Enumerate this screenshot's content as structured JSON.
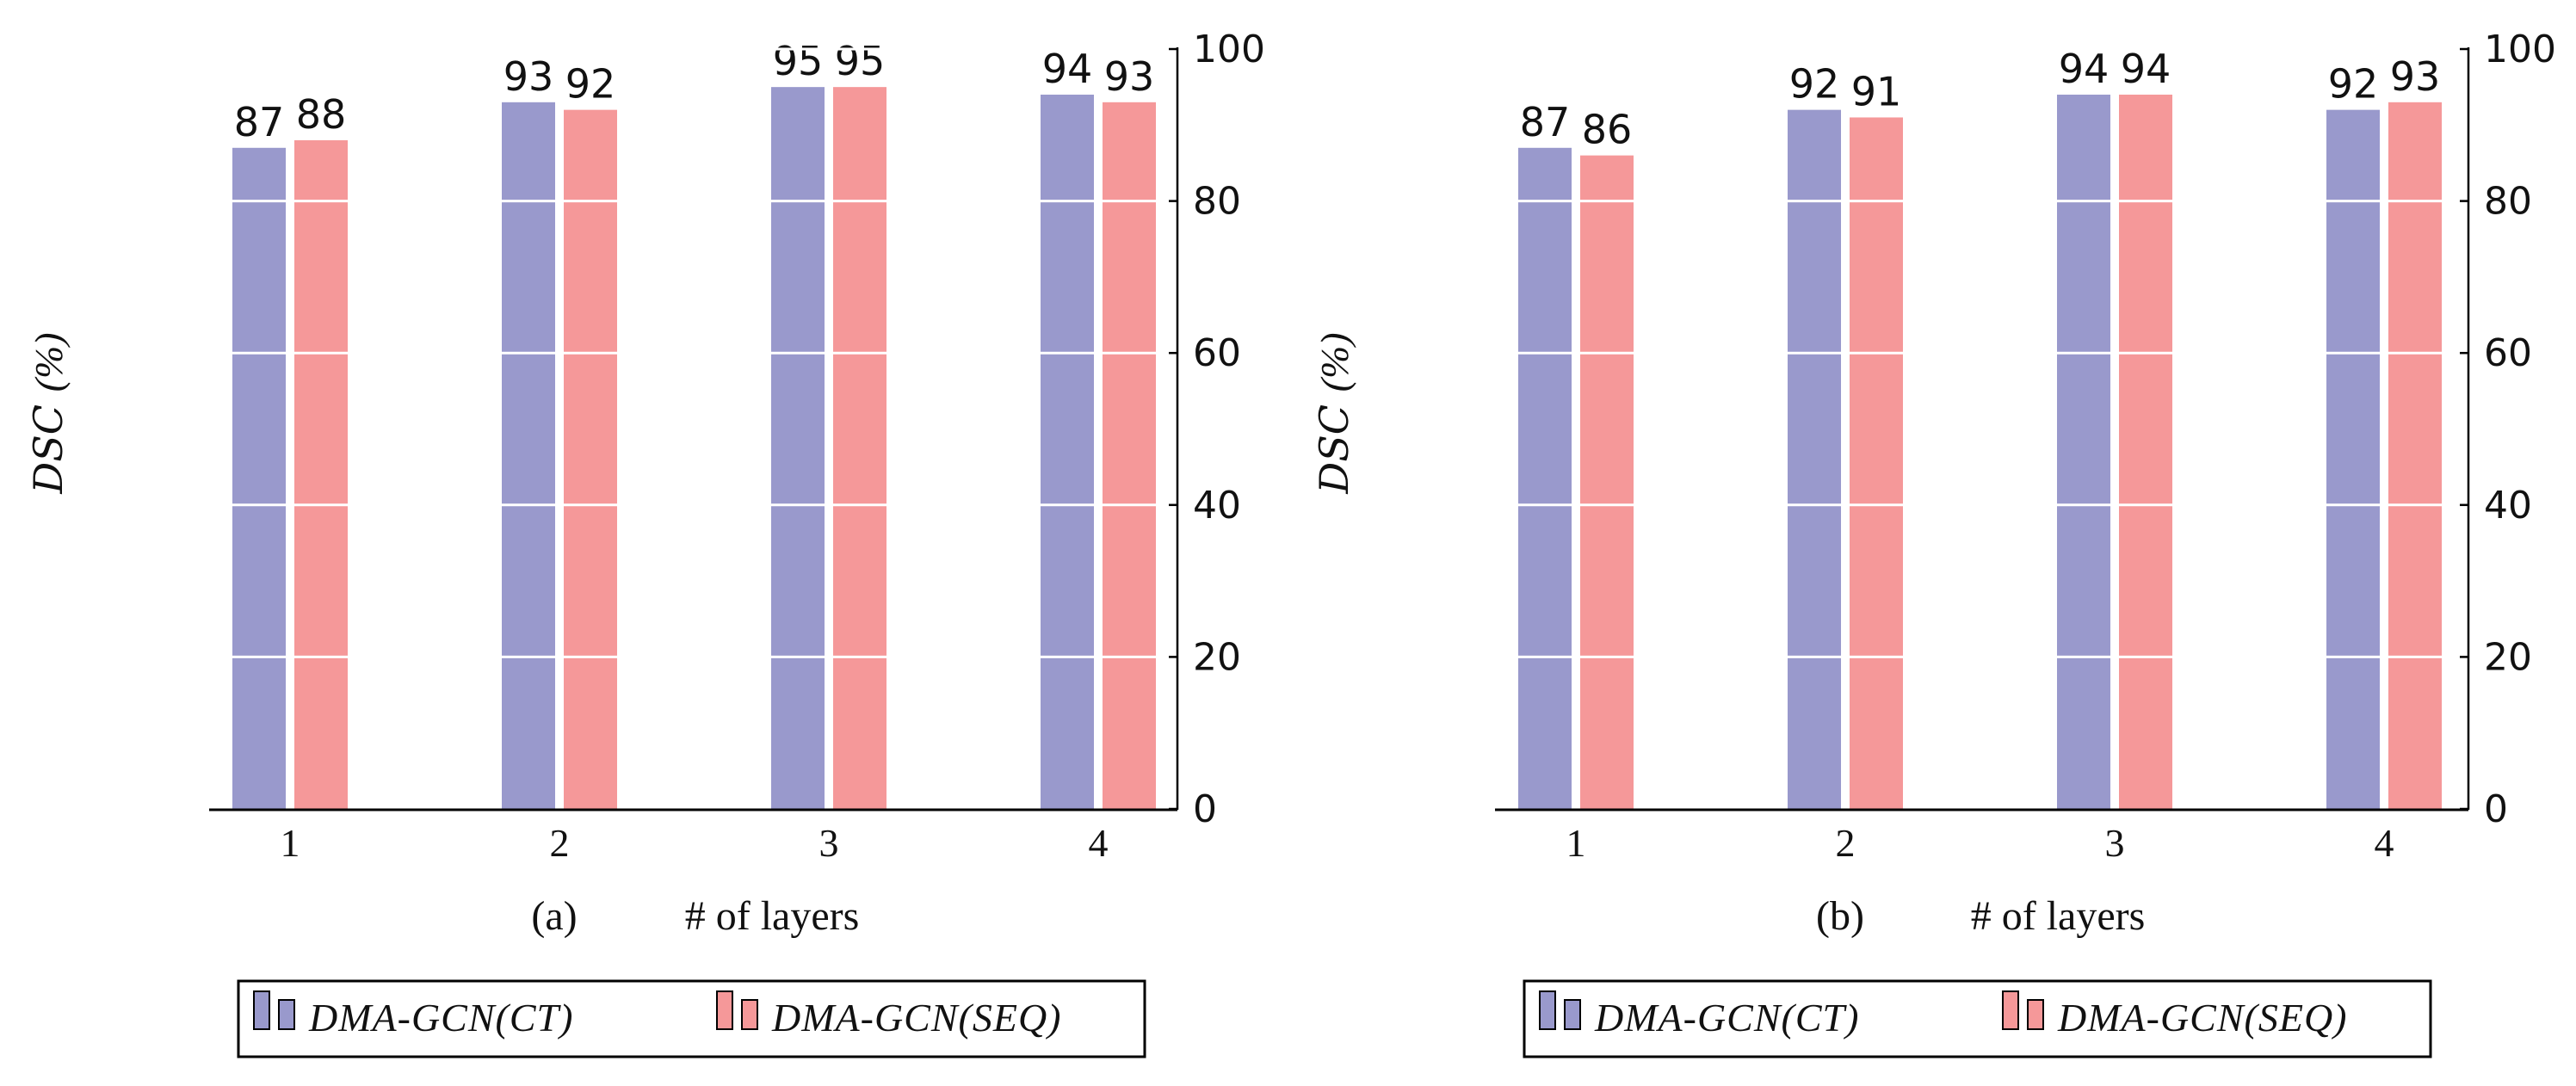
{
  "colors": {
    "ct": "#9999cc",
    "seq": "#f59899",
    "axis": "#000000",
    "grid": "#ffffff"
  },
  "chart_data": [
    {
      "type": "bar",
      "panel_label": "(a)",
      "xlabel": "# of layers",
      "ylabel_main": "DSC",
      "ylabel_unit": "(%)",
      "categories": [
        "1",
        "2",
        "3",
        "4"
      ],
      "ylim": [
        0,
        100
      ],
      "yticks": [
        "0",
        "20",
        "40",
        "60",
        "80",
        "100"
      ],
      "yaxis_side": "right",
      "grid": "horizontal white lines at each tick",
      "series": [
        {
          "name": "DMA-GCN(CT)",
          "values": [
            87,
            93,
            95,
            94
          ]
        },
        {
          "name": "DMA-GCN(SEQ)",
          "values": [
            88,
            92,
            95,
            93
          ]
        }
      ],
      "legend": [
        "DMA-GCN(CT)",
        "DMA-GCN(SEQ)"
      ]
    },
    {
      "type": "bar",
      "panel_label": "(b)",
      "xlabel": "# of layers",
      "ylabel_main": "DSC",
      "ylabel_unit": "(%)",
      "categories": [
        "1",
        "2",
        "3",
        "4"
      ],
      "ylim": [
        0,
        100
      ],
      "yticks": [
        "0",
        "20",
        "40",
        "60",
        "80",
        "100"
      ],
      "yaxis_side": "right",
      "grid": "horizontal white lines at each tick",
      "series": [
        {
          "name": "DMA-GCN(CT)",
          "values": [
            87,
            92,
            94,
            92
          ]
        },
        {
          "name": "DMA-GCN(SEQ)",
          "values": [
            86,
            91,
            94,
            93
          ]
        }
      ],
      "legend": [
        "DMA-GCN(CT)",
        "DMA-GCN(SEQ)"
      ]
    }
  ]
}
